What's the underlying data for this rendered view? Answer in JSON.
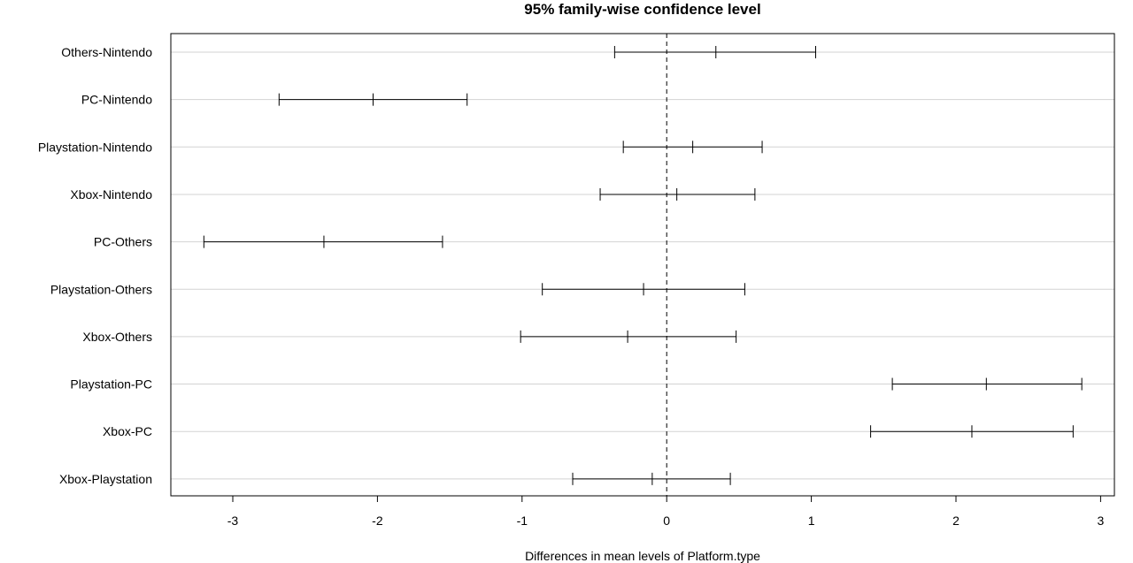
{
  "chart_data": {
    "type": "errorbar",
    "title": "95% family-wise confidence level",
    "xlabel": "Differences in mean levels of Platform.type",
    "ylabel": "",
    "xlim": [
      -3.4,
      3.1
    ],
    "xticks": [
      -3,
      -2,
      -1,
      0,
      1,
      2,
      3
    ],
    "xtick_labels": [
      "-3",
      "-2",
      "-1",
      "0",
      "1",
      "2",
      "3"
    ],
    "reference_line": 0,
    "grid": "horizontal",
    "categories": [
      "Others-Nintendo",
      "PC-Nintendo",
      "Playstation-Nintendo",
      "Xbox-Nintendo",
      "PC-Others",
      "Playstation-Others",
      "Xbox-Others",
      "Playstation-PC",
      "Xbox-PC",
      "Xbox-Playstation"
    ],
    "series": [
      {
        "diff": 0.34,
        "lwr": -0.36,
        "upr": 1.03
      },
      {
        "diff": -2.03,
        "lwr": -2.68,
        "upr": -1.38
      },
      {
        "diff": 0.18,
        "lwr": -0.3,
        "upr": 0.66
      },
      {
        "diff": 0.07,
        "lwr": -0.46,
        "upr": 0.61
      },
      {
        "diff": -2.37,
        "lwr": -3.2,
        "upr": -1.55
      },
      {
        "diff": -0.16,
        "lwr": -0.86,
        "upr": 0.54
      },
      {
        "diff": -0.27,
        "lwr": -1.01,
        "upr": 0.48
      },
      {
        "diff": 2.21,
        "lwr": 1.56,
        "upr": 2.87
      },
      {
        "diff": 2.11,
        "lwr": 1.41,
        "upr": 2.81
      },
      {
        "diff": -0.1,
        "lwr": -0.65,
        "upr": 0.44
      }
    ]
  }
}
